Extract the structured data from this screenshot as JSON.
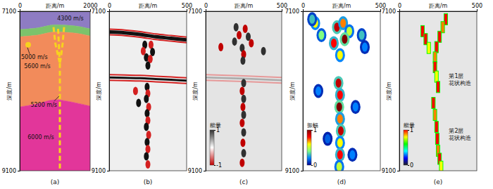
{
  "chart_data": [
    {
      "type": "velocity_model",
      "title": "(a)",
      "x_label": "距离/m",
      "y_label": "深度/m",
      "xlim": [
        0,
        2000
      ],
      "ylim": [
        7100,
        9100
      ],
      "xticks": [
        0,
        2000
      ],
      "yticks": [
        7100,
        9100
      ],
      "boundaries_x": [
        0,
        500,
        1000,
        1500,
        2000
      ],
      "boundaries": [
        [
          7100,
          7100,
          7100,
          7100,
          7100
        ],
        [
          7330,
          7310,
          7270,
          7280,
          7320
        ],
        [
          7420,
          7400,
          7360,
          7370,
          7410
        ],
        [
          8300,
          8260,
          8210,
          8240,
          8290
        ],
        [
          9100,
          9100,
          9100,
          9100,
          9100
        ]
      ],
      "layers": [
        {
          "label": "4300 m/s",
          "color": "#8e7cc3"
        },
        {
          "color": "#7cc36b"
        },
        {
          "label": "5600 m/s",
          "color": "#f28b5b"
        },
        {
          "label": "6000 m/s",
          "color": "#e2369a"
        }
      ],
      "bodies": [
        {
          "label": "5000 m/s",
          "x": 240,
          "y": 7520,
          "color": "#f7d21e"
        }
      ],
      "fault": {
        "label": "5200 m/s",
        "color": "#f7d21e",
        "traces": [
          {
            "x": [
              1140,
              1140
            ],
            "y": [
              7750,
              9100
            ]
          },
          {
            "x": [
              960,
              1010,
              1100,
              1140
            ],
            "y": [
              7300,
              7500,
              7680,
              7750
            ]
          },
          {
            "x": [
              1260,
              1220,
              1170,
              1140
            ],
            "y": [
              7300,
              7500,
              7680,
              7750
            ]
          },
          {
            "x": [
              1090,
              1110,
              1130
            ],
            "y": [
              7320,
              7500,
              7700
            ]
          }
        ]
      }
    },
    {
      "type": "seismic_section",
      "title": "(b)",
      "x_label": "距离/m",
      "y_label": "深度/m",
      "xlim": [
        0,
        500
      ],
      "ylim": [
        7100,
        9100
      ],
      "xticks": [
        0,
        500
      ],
      "yticks": [
        7100,
        9100
      ],
      "reflectors": [
        {
          "x": [
            0,
            100,
            200,
            300,
            400,
            500
          ],
          "y": [
            7360,
            7370,
            7390,
            7420,
            7440,
            7460
          ],
          "amplitude": 1
        },
        {
          "x": [
            0,
            100,
            200,
            300,
            400,
            500
          ],
          "y": [
            7930,
            7935,
            7940,
            7950,
            7960,
            7970
          ],
          "amplitude": 0.5
        }
      ],
      "events": [
        {
          "x": 230,
          "y": 7520,
          "amplitude": 1
        },
        {
          "x": 270,
          "y": 7520,
          "amplitude": -1
        },
        {
          "x": 220,
          "y": 7600,
          "amplitude": -1
        },
        {
          "x": 280,
          "y": 7610,
          "amplitude": 1
        },
        {
          "x": 240,
          "y": 7680,
          "amplitude": 1
        },
        {
          "x": 265,
          "y": 7700,
          "amplitude": -1
        },
        {
          "x": 250,
          "y": 7780,
          "amplitude": 1
        },
        {
          "x": 245,
          "y": 8050,
          "amplitude": 1
        },
        {
          "x": 250,
          "y": 8130,
          "amplitude": -1
        },
        {
          "x": 240,
          "y": 8200,
          "amplitude": 1
        },
        {
          "x": 255,
          "y": 8300,
          "amplitude": -1
        },
        {
          "x": 245,
          "y": 8380,
          "amplitude": 1
        },
        {
          "x": 250,
          "y": 8470,
          "amplitude": -1
        },
        {
          "x": 240,
          "y": 8550,
          "amplitude": 1
        },
        {
          "x": 255,
          "y": 8650,
          "amplitude": -1
        },
        {
          "x": 245,
          "y": 8740,
          "amplitude": 1
        },
        {
          "x": 250,
          "y": 8830,
          "amplitude": -1
        },
        {
          "x": 240,
          "y": 8920,
          "amplitude": 1
        },
        {
          "x": 250,
          "y": 9020,
          "amplitude": -1
        },
        {
          "x": 170,
          "y": 8100,
          "amplitude": -1
        },
        {
          "x": 190,
          "y": 8250,
          "amplitude": 1
        }
      ]
    },
    {
      "type": "seismic_section",
      "title": "(c)",
      "x_label": "距离/m",
      "y_label": "深度/m",
      "xlim": [
        0,
        500
      ],
      "ylim": [
        7100,
        9100
      ],
      "xticks": [
        0,
        500
      ],
      "yticks": [
        7100,
        9100
      ],
      "colorbar": {
        "label": "能量",
        "range": [
          -1,
          1
        ],
        "ticks": [
          -1,
          1
        ],
        "colors": [
          "#c00000",
          "#ffffff",
          "#303030"
        ]
      },
      "reflectors": [
        {
          "x": [
            0,
            250,
            500
          ],
          "y": [
            7930,
            7945,
            7965
          ],
          "amplitude": 0.4
        }
      ],
      "events": [
        {
          "x": 200,
          "y": 7300,
          "amplitude": 1
        },
        {
          "x": 220,
          "y": 7400,
          "amplitude": -1
        },
        {
          "x": 190,
          "y": 7480,
          "amplitude": 1
        },
        {
          "x": 260,
          "y": 7320,
          "amplitude": -1
        },
        {
          "x": 280,
          "y": 7420,
          "amplitude": 1
        },
        {
          "x": 300,
          "y": 7500,
          "amplitude": -1
        },
        {
          "x": 240,
          "y": 7560,
          "amplitude": 1
        },
        {
          "x": 250,
          "y": 7640,
          "amplitude": -1
        },
        {
          "x": 245,
          "y": 7720,
          "amplitude": 1
        },
        {
          "x": 100,
          "y": 7550,
          "amplitude": -1
        },
        {
          "x": 380,
          "y": 7600,
          "amplitude": 1
        },
        {
          "x": 250,
          "y": 8000,
          "amplitude": 1
        },
        {
          "x": 240,
          "y": 8100,
          "amplitude": -1
        },
        {
          "x": 250,
          "y": 8200,
          "amplitude": 1
        },
        {
          "x": 245,
          "y": 8300,
          "amplitude": -1
        },
        {
          "x": 250,
          "y": 8400,
          "amplitude": 1
        },
        {
          "x": 240,
          "y": 8500,
          "amplitude": -1
        },
        {
          "x": 250,
          "y": 8620,
          "amplitude": 1
        },
        {
          "x": 245,
          "y": 8750,
          "amplitude": -1
        },
        {
          "x": 250,
          "y": 8880,
          "amplitude": 1
        },
        {
          "x": 240,
          "y": 9000,
          "amplitude": -1
        }
      ]
    },
    {
      "type": "amplitude_map",
      "title": "(d)",
      "x_label": "距离/m",
      "y_label": "深度/m",
      "xlim": [
        0,
        500
      ],
      "ylim": [
        7100,
        9100
      ],
      "xticks": [
        0,
        500
      ],
      "yticks": [
        7100,
        9100
      ],
      "colorbar": {
        "label": "振幅",
        "range": [
          0,
          1
        ],
        "ticks": [
          0,
          1
        ],
        "colors": [
          "#00008f",
          "#0080ff",
          "#80ff80",
          "#ffff00",
          "#ff0000",
          "#800000"
        ]
      },
      "events": [
        {
          "x": 80,
          "y": 7250,
          "amplitude": 0.6
        },
        {
          "x": 120,
          "y": 7400,
          "amplitude": 0.4
        },
        {
          "x": 60,
          "y": 7200,
          "amplitude": 0.3
        },
        {
          "x": 220,
          "y": 7300,
          "amplitude": 0.9
        },
        {
          "x": 260,
          "y": 7250,
          "amplitude": 0.7
        },
        {
          "x": 300,
          "y": 7350,
          "amplitude": 0.5
        },
        {
          "x": 200,
          "y": 7500,
          "amplitude": 0.8
        },
        {
          "x": 270,
          "y": 7450,
          "amplitude": 1
        },
        {
          "x": 240,
          "y": 7650,
          "amplitude": 0.6
        },
        {
          "x": 380,
          "y": 7400,
          "amplitude": 0.3
        },
        {
          "x": 400,
          "y": 7550,
          "amplitude": 0.2
        },
        {
          "x": 230,
          "y": 8000,
          "amplitude": 0.9
        },
        {
          "x": 240,
          "y": 8150,
          "amplitude": 0.8
        },
        {
          "x": 235,
          "y": 8300,
          "amplitude": 1
        },
        {
          "x": 240,
          "y": 8450,
          "amplitude": 0.7
        },
        {
          "x": 245,
          "y": 8600,
          "amplitude": 0.9
        },
        {
          "x": 240,
          "y": 8750,
          "amplitude": 0.6
        },
        {
          "x": 240,
          "y": 8900,
          "amplitude": 0.8
        },
        {
          "x": 235,
          "y": 9050,
          "amplitude": 0.5
        },
        {
          "x": 100,
          "y": 8100,
          "amplitude": 0.2
        },
        {
          "x": 340,
          "y": 8300,
          "amplitude": 0.2
        },
        {
          "x": 160,
          "y": 8700,
          "amplitude": 0.15
        },
        {
          "x": 320,
          "y": 8900,
          "amplitude": 0.2
        }
      ]
    },
    {
      "type": "energy_map",
      "title": "(e)",
      "x_label": "距离/m",
      "y_label": "深度/m",
      "xlim": [
        0,
        500
      ],
      "ylim": [
        7100,
        9100
      ],
      "xticks": [
        0,
        500
      ],
      "yticks": [
        7100,
        9100
      ],
      "colorbar": {
        "label": "能量",
        "range": [
          0,
          1
        ],
        "ticks": [
          0,
          1
        ],
        "colors": [
          "#202020",
          "#0000ff",
          "#00ffff",
          "#00ff00",
          "#ffff00",
          "#ff0000"
        ]
      },
      "events": [
        {
          "x": 150,
          "y": 7350,
          "energy": 1
        },
        {
          "x": 170,
          "y": 7450,
          "energy": 1
        },
        {
          "x": 190,
          "y": 7560,
          "energy": 0.8
        },
        {
          "x": 300,
          "y": 7200,
          "energy": 1
        },
        {
          "x": 280,
          "y": 7300,
          "energy": 0.9
        },
        {
          "x": 260,
          "y": 7420,
          "energy": 1
        },
        {
          "x": 240,
          "y": 7550,
          "energy": 1
        },
        {
          "x": 230,
          "y": 7680,
          "energy": 0.9
        },
        {
          "x": 230,
          "y": 7800,
          "energy": 1
        },
        {
          "x": 240,
          "y": 7920,
          "energy": 0.8
        },
        {
          "x": 250,
          "y": 8050,
          "energy": 1
        },
        {
          "x": 220,
          "y": 8250,
          "energy": 1
        },
        {
          "x": 230,
          "y": 8400,
          "energy": 0.9
        },
        {
          "x": 240,
          "y": 8550,
          "energy": 1
        },
        {
          "x": 245,
          "y": 8700,
          "energy": 1
        },
        {
          "x": 250,
          "y": 8850,
          "energy": 0.9
        },
        {
          "x": 260,
          "y": 8950,
          "energy": 1
        },
        {
          "x": 270,
          "y": 9050,
          "energy": 0.8
        }
      ],
      "annotations": [
        {
          "lines": [
            "第1层",
            "花状构造"
          ]
        },
        {
          "lines": [
            "第2层",
            "花状构造"
          ]
        }
      ]
    }
  ]
}
